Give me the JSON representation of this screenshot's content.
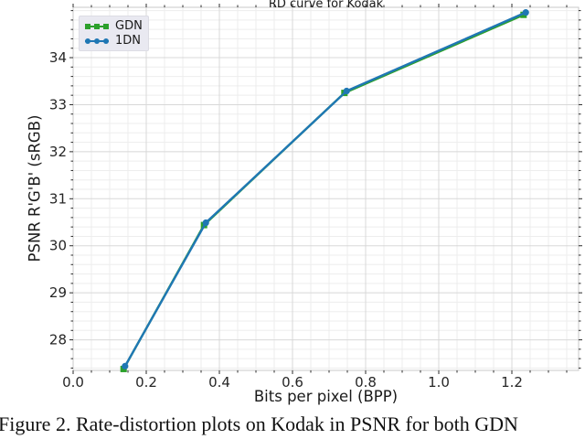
{
  "caption": "Figure 2. Rate-distortion plots on Kodak in PSNR for both GDN",
  "chart_data": {
    "type": "line",
    "title": "RD curve for Kodak",
    "xlabel": "Bits per pixel (BPP)",
    "ylabel": "PSNR R'G'B' (sRGB)",
    "xlim": [
      0.0,
      1.3825
    ],
    "ylim": [
      27.35,
      35.07
    ],
    "xticks": [
      0.0,
      0.2,
      0.4,
      0.6,
      0.8,
      1.0,
      1.2
    ],
    "xtick_labels": [
      "0.0",
      "0.2",
      "0.4",
      "0.6",
      "0.8",
      "1.0",
      "1.2"
    ],
    "yticks": [
      28,
      29,
      30,
      31,
      32,
      33,
      34
    ],
    "ytick_labels": [
      "28",
      "29",
      "30",
      "31",
      "32",
      "33",
      "34"
    ],
    "x_minor_step": 0.05,
    "y_minor_step": 0.2,
    "grid": "major+minor",
    "legend_position": "upper-left",
    "colors": {
      "major_grid": "#d8d8d8",
      "minor_grid": "#ededed",
      "spine": "#c9c9c9",
      "tick": "#2b2b2b",
      "tick_label": "#262626",
      "legend_bg": "#e9e9f1"
    },
    "series": [
      {
        "name": "GDN",
        "color": "#2ca02c",
        "marker": "square",
        "x": [
          0.138,
          0.358,
          0.742,
          1.232
        ],
        "y": [
          27.38,
          30.44,
          33.25,
          34.91
        ]
      },
      {
        "name": "1DN",
        "color": "#1f77b4",
        "marker": "circle",
        "x": [
          0.142,
          0.363,
          0.748,
          1.238
        ],
        "y": [
          27.44,
          30.49,
          33.29,
          34.96
        ]
      }
    ]
  }
}
